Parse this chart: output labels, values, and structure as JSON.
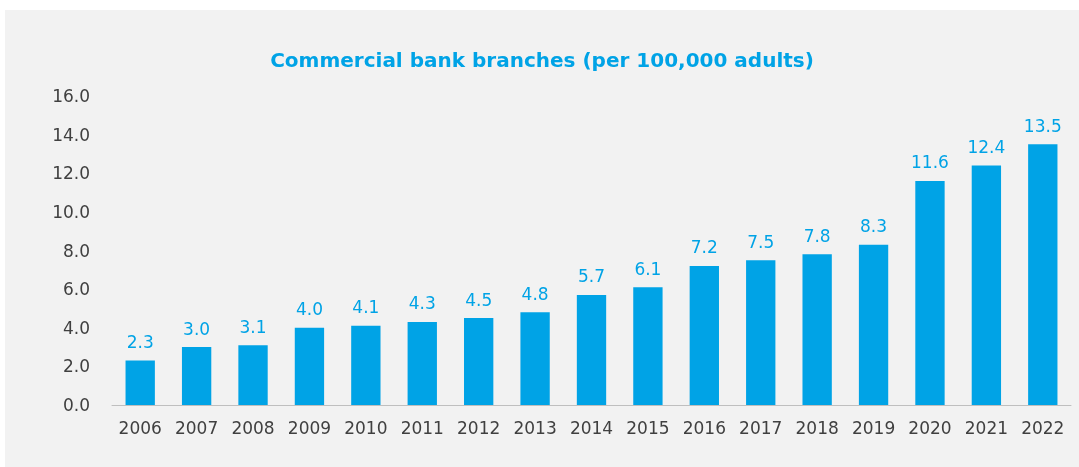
{
  "chart_data": {
    "type": "bar",
    "title": "Commercial bank branches (per 100,000 adults)",
    "categories": [
      "2006",
      "2007",
      "2008",
      "2009",
      "2010",
      "2011",
      "2012",
      "2013",
      "2014",
      "2015",
      "2016",
      "2017",
      "2018",
      "2019",
      "2020",
      "2021",
      "2022"
    ],
    "values": [
      2.3,
      3.0,
      3.1,
      4.0,
      4.1,
      4.3,
      4.5,
      4.8,
      5.7,
      6.1,
      7.2,
      7.5,
      7.8,
      8.3,
      11.6,
      12.4,
      13.5
    ],
    "value_labels": [
      "2.3",
      "3.0",
      "3.1",
      "4.0",
      "4.1",
      "4.3",
      "4.5",
      "4.8",
      "5.7",
      "6.1",
      "7.2",
      "7.5",
      "7.8",
      "8.3",
      "11.6",
      "12.4",
      "13.5"
    ],
    "color": "#00a3e6",
    "ylim": [
      0,
      16
    ],
    "yticks": [
      {
        "value": 0,
        "label": "0.0"
      },
      {
        "value": 2,
        "label": "2.0"
      },
      {
        "value": 4,
        "label": "4.0"
      },
      {
        "value": 6,
        "label": "6.0"
      },
      {
        "value": 8,
        "label": "8.0"
      },
      {
        "value": 10,
        "label": "10.0"
      },
      {
        "value": 12,
        "label": "12.0"
      },
      {
        "value": 14,
        "label": "14.0"
      },
      {
        "value": 16,
        "label": "16.0"
      }
    ],
    "grid": false
  }
}
